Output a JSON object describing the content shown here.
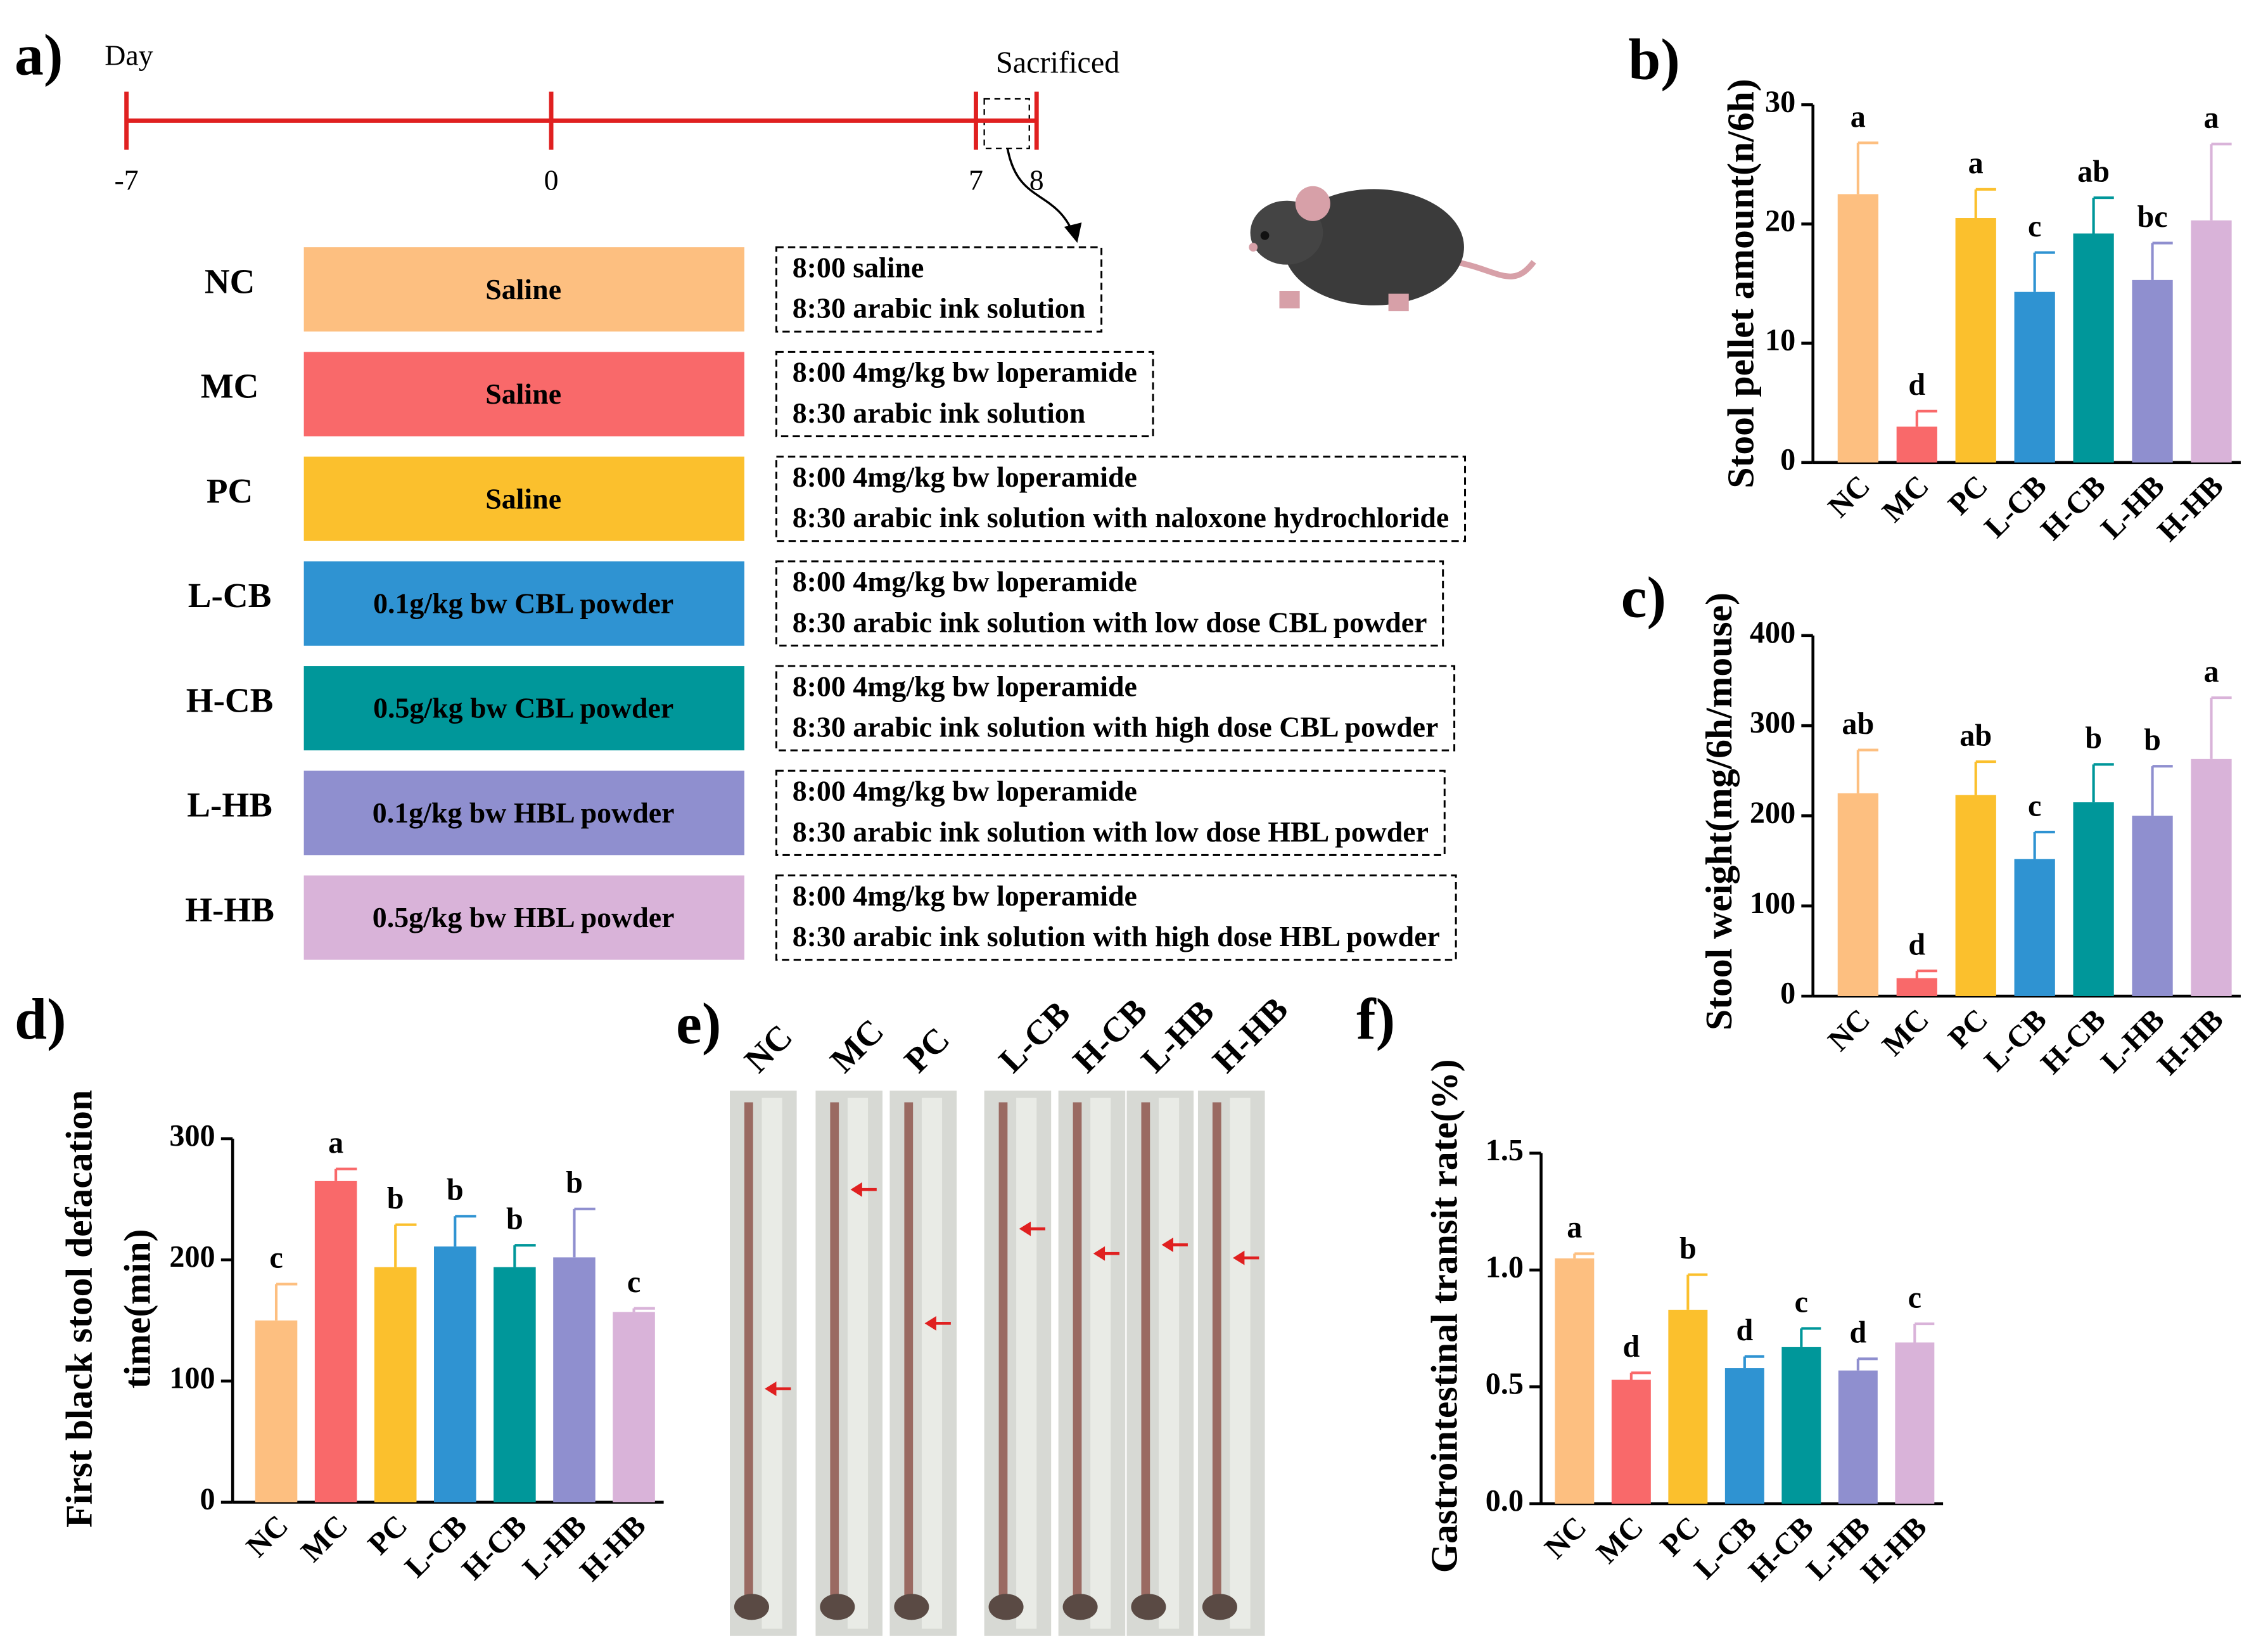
{
  "timeline": {
    "label": "Day",
    "ticks": [
      -7,
      0,
      7,
      8
    ],
    "event": "Sacrificed"
  },
  "groups": [
    {
      "name": "NC",
      "treatment": "Saline",
      "color": "#fdbf80",
      "protocol": [
        "8:00 saline",
        "8:30 arabic ink solution"
      ]
    },
    {
      "name": "MC",
      "treatment": "Saline",
      "color": "#f9696a",
      "protocol": [
        "8:00 4mg/kg bw loperamide",
        "8:30 arabic ink solution"
      ]
    },
    {
      "name": "PC",
      "treatment": "Saline",
      "color": "#fbc02d",
      "protocol": [
        "8:00 4mg/kg bw loperamide",
        "8:30 arabic ink solution with naloxone hydrochloride"
      ]
    },
    {
      "name": "L-CB",
      "treatment": "0.1g/kg bw CBL powder",
      "color": "#2f93d2",
      "protocol": [
        "8:00 4mg/kg bw loperamide",
        "8:30 arabic ink solution with low dose CBL powder"
      ]
    },
    {
      "name": "H-CB",
      "treatment": "0.5g/kg bw CBL powder",
      "color": "#00979a",
      "protocol": [
        "8:00 4mg/kg bw loperamide",
        "8:30 arabic ink solution with high dose CBL powder"
      ]
    },
    {
      "name": "L-HB",
      "treatment": "0.1g/kg bw HBL powder",
      "color": "#8f8fcf",
      "protocol": [
        "8:00 4mg/kg bw loperamide",
        "8:30 arabic ink solution with low dose HBL powder"
      ]
    },
    {
      "name": "H-HB",
      "treatment": "0.5g/kg bw HBL powder",
      "color": "#d9b3d9",
      "protocol": [
        "8:00 4mg/kg bw loperamide",
        "8:30 arabic ink solution with high dose HBL powder"
      ]
    }
  ],
  "photos": {
    "panel_label": "e)",
    "labels": [
      "NC",
      "MC",
      "PC",
      "L-CB",
      "H-CB",
      "L-HB",
      "H-HB"
    ]
  },
  "panel_a_label": "a)",
  "chart_data": [
    {
      "type": "bar",
      "panel_label": "b)",
      "ylabel": "Stool pellet amount(n/6h)",
      "categories": [
        "NC",
        "MC",
        "PC",
        "L-CB",
        "H-CB",
        "L-HB",
        "H-HB"
      ],
      "values": [
        22.5,
        3,
        20.5,
        14.3,
        19.2,
        15.3,
        20.3
      ],
      "errors": [
        4.3,
        1.3,
        2.4,
        3.3,
        3,
        3.1,
        6.4
      ],
      "annotations": [
        "a",
        "d",
        "a",
        "c",
        "ab",
        "bc",
        "a"
      ],
      "colors": [
        "#fdbf80",
        "#f9696a",
        "#fbc02d",
        "#2f93d2",
        "#00979a",
        "#8f8fcf",
        "#d9b3d9"
      ],
      "ylim": [
        0,
        30
      ],
      "yticks": [
        0,
        10,
        20,
        30
      ]
    },
    {
      "type": "bar",
      "panel_label": "c)",
      "ylabel": "Stool weight(mg/6h/mouse)",
      "categories": [
        "NC",
        "MC",
        "PC",
        "L-CB",
        "H-CB",
        "L-HB",
        "H-HB"
      ],
      "values": [
        225,
        20,
        223,
        152,
        215,
        200,
        263
      ],
      "errors": [
        48,
        8,
        37,
        30,
        42,
        55,
        68
      ],
      "annotations": [
        "ab",
        "d",
        "ab",
        "c",
        "b",
        "b",
        "a"
      ],
      "colors": [
        "#fdbf80",
        "#f9696a",
        "#fbc02d",
        "#2f93d2",
        "#00979a",
        "#8f8fcf",
        "#d9b3d9"
      ],
      "ylim": [
        0,
        400
      ],
      "yticks": [
        0,
        100,
        200,
        300,
        400
      ]
    },
    {
      "type": "bar",
      "panel_label": "d)",
      "ylabel": [
        "First black stool defacation",
        "time(min)"
      ],
      "categories": [
        "NC",
        "MC",
        "PC",
        "L-CB",
        "H-CB",
        "L-HB",
        "H-HB"
      ],
      "values": [
        150,
        265,
        194,
        211,
        194,
        202,
        157
      ],
      "errors": [
        30,
        10,
        35,
        25,
        18,
        40,
        3
      ],
      "annotations": [
        "c",
        "a",
        "b",
        "b",
        "b",
        "b",
        "c"
      ],
      "colors": [
        "#fdbf80",
        "#f9696a",
        "#fbc02d",
        "#2f93d2",
        "#00979a",
        "#8f8fcf",
        "#d9b3d9"
      ],
      "ylim": [
        0,
        300
      ],
      "yticks": [
        0,
        100,
        200,
        300
      ]
    },
    {
      "type": "bar",
      "panel_label": "f)",
      "ylabel": "Gastrointestinal transit rate(%)",
      "categories": [
        "NC",
        "MC",
        "PC",
        "L-CB",
        "H-CB",
        "L-HB",
        "H-HB"
      ],
      "values": [
        1.05,
        0.53,
        0.83,
        0.58,
        0.67,
        0.57,
        0.69
      ],
      "errors": [
        0.02,
        0.03,
        0.15,
        0.05,
        0.08,
        0.05,
        0.08
      ],
      "annotations": [
        "a",
        "d",
        "b",
        "d",
        "c",
        "d",
        "c"
      ],
      "colors": [
        "#fdbf80",
        "#f9696a",
        "#fbc02d",
        "#2f93d2",
        "#00979a",
        "#8f8fcf",
        "#d9b3d9"
      ],
      "ylim": [
        0,
        1.5
      ],
      "yticks": [
        {
          "value": 0,
          "label": "0.0"
        },
        0.5,
        {
          "value": 1,
          "label": "1.0"
        },
        1.5
      ]
    }
  ]
}
